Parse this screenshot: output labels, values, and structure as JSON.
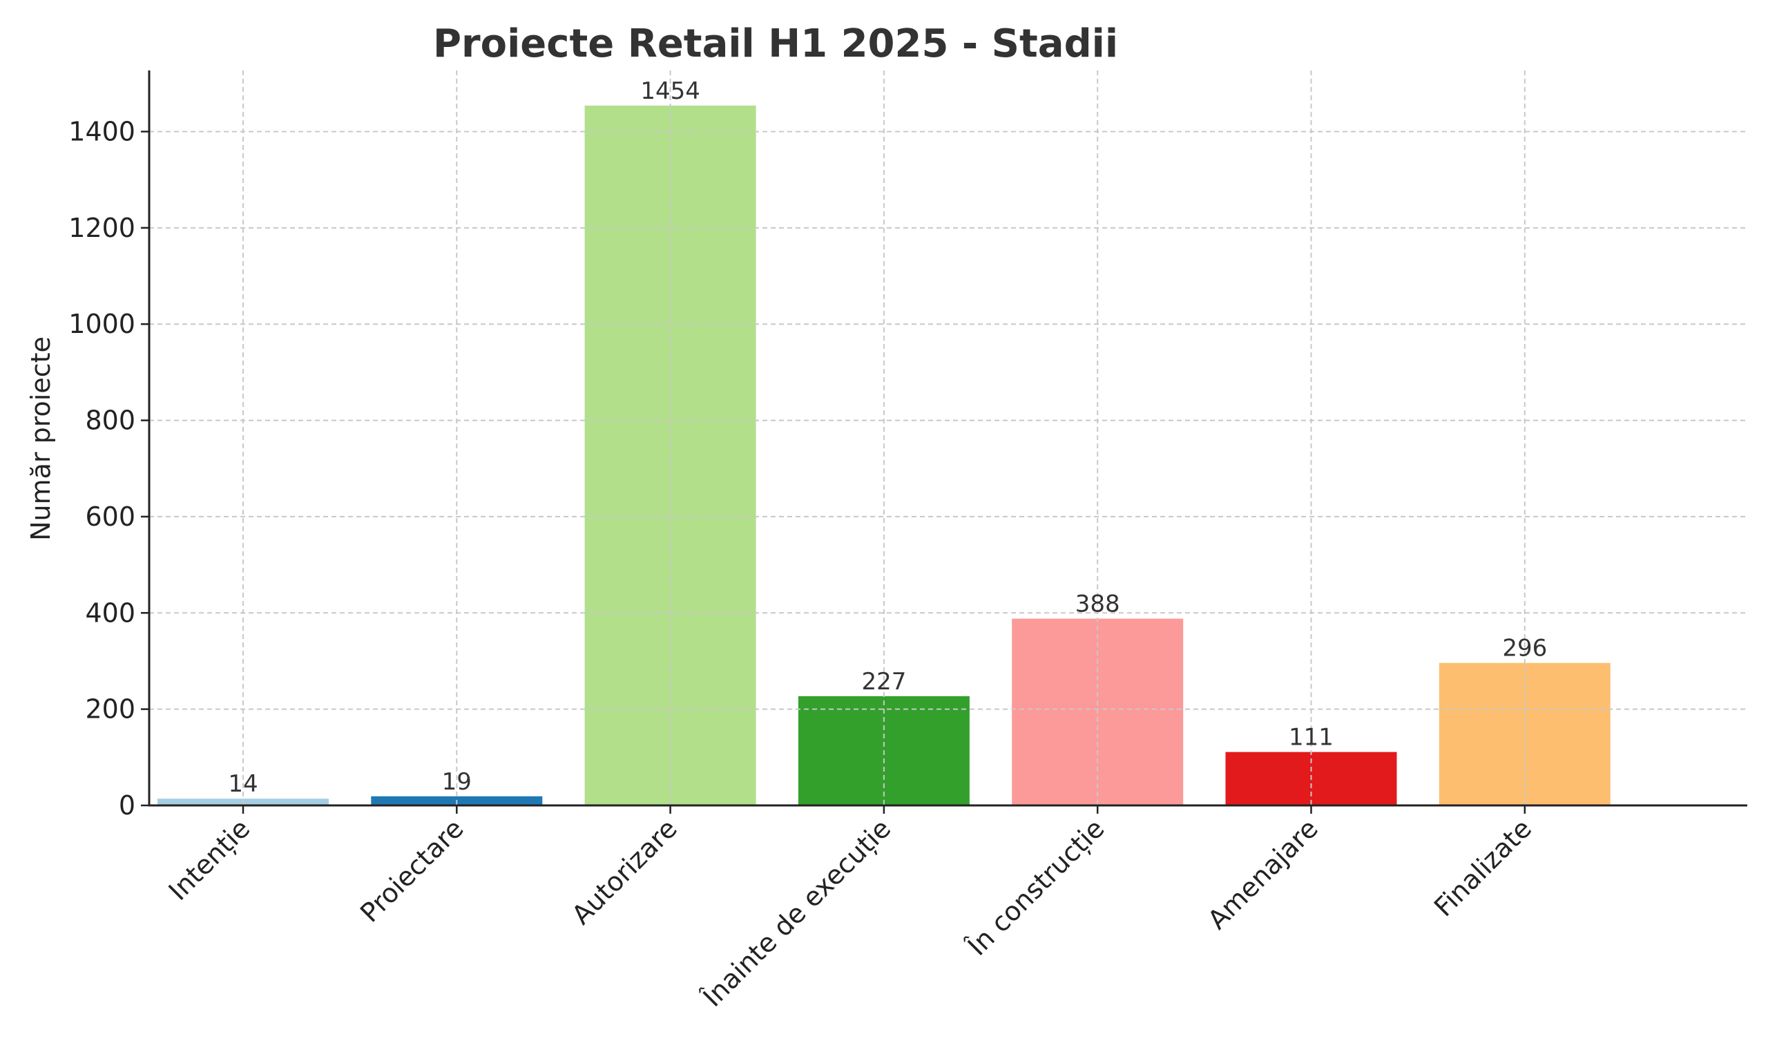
{
  "chart_data": {
    "type": "bar",
    "title": "Proiecte Retail H1 2025 - Stadii",
    "xlabel": "",
    "ylabel": "Număr proiecte",
    "categories": [
      "Intenție",
      "Proiectare",
      "Autorizare",
      "Înainte de execuție",
      "În construcție",
      "Amenajare",
      "Finalizate"
    ],
    "values": [
      14,
      19,
      1454,
      227,
      388,
      111,
      296
    ],
    "value_labels": [
      "14",
      "19",
      "1454",
      "227",
      "388",
      "111",
      "296"
    ],
    "colors": [
      "#a6cee3",
      "#1f78b4",
      "#b2df8a",
      "#33a02c",
      "#fb9a99",
      "#e31a1c",
      "#fdbf6f"
    ],
    "ylim": [
      0,
      1527
    ],
    "yticks": [
      0,
      200,
      400,
      600,
      800,
      1000,
      1200,
      1400
    ],
    "ytick_labels": [
      "0",
      "200",
      "400",
      "600",
      "800",
      "1000",
      "1200",
      "1400"
    ],
    "grid": true,
    "legend": "none"
  }
}
